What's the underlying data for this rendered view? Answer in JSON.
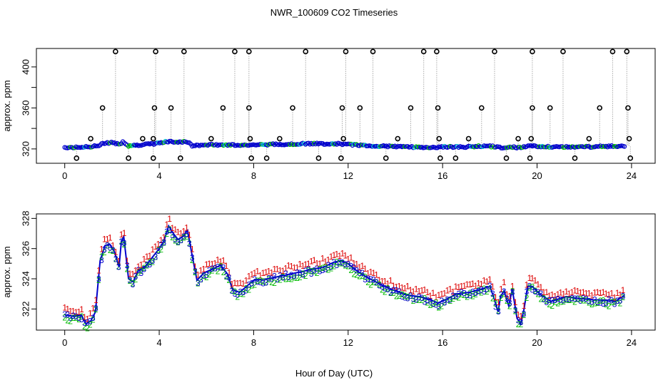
{
  "title": "NWR_100609  CO2 Timeseries",
  "xlabel": "Hour of Day (UTC)",
  "colors": {
    "open_circle": "#000000",
    "connector": "#aaaaaa",
    "series1": "#dd0000",
    "series2": "#00bb00",
    "series3": "#0000cc",
    "avg_line": "#0000cc",
    "cyan_points": "#00cccc"
  },
  "chart_data": [
    {
      "type": "scatter",
      "name": "top-panel",
      "ylabel": "approx. ppm",
      "xlim": [
        -1.2,
        25
      ],
      "ylim": [
        306,
        418
      ],
      "x_ticks": [
        0,
        4,
        8,
        12,
        16,
        20,
        24
      ],
      "x_tick_labels": [
        "0",
        "4",
        "8",
        "12",
        "16",
        "20",
        "24"
      ],
      "y_ticks": [
        320,
        360,
        400
      ],
      "y_minor_ticks": [
        340,
        380
      ],
      "y_tick_labels": [
        "320",
        "360",
        "400"
      ],
      "baseline": [
        [
          0,
          321.5
        ],
        [
          0.5,
          321.5
        ],
        [
          1.0,
          322
        ],
        [
          1.4,
          323
        ],
        [
          1.7,
          326
        ],
        [
          2.0,
          326
        ],
        [
          2.3,
          325
        ],
        [
          2.5,
          327
        ],
        [
          2.7,
          323
        ],
        [
          3.2,
          324
        ],
        [
          3.8,
          325
        ],
        [
          4.3,
          327
        ],
        [
          4.8,
          327
        ],
        [
          5.2,
          327
        ],
        [
          5.4,
          323
        ],
        [
          6.0,
          324
        ],
        [
          7.0,
          324
        ],
        [
          8,
          324
        ],
        [
          10,
          325
        ],
        [
          11.6,
          325
        ],
        [
          12.2,
          324
        ],
        [
          13,
          323
        ],
        [
          14.5,
          322
        ],
        [
          15.6,
          321.5
        ],
        [
          16,
          322
        ],
        [
          17,
          322
        ],
        [
          17.8,
          323
        ],
        [
          18.3,
          322
        ],
        [
          18.6,
          321
        ],
        [
          19.0,
          322
        ],
        [
          19.3,
          321
        ],
        [
          19.6,
          323
        ],
        [
          20.5,
          322
        ],
        [
          22,
          322
        ],
        [
          23.7,
          323
        ]
      ],
      "spikes": [
        [
          0.5,
          311
        ],
        [
          1.1,
          330
        ],
        [
          1.6,
          360
        ],
        [
          2.15,
          415
        ],
        [
          2.7,
          311
        ],
        [
          3.3,
          330
        ],
        [
          3.75,
          330
        ],
        [
          3.85,
          415
        ],
        [
          3.8,
          360
        ],
        [
          3.75,
          311
        ],
        [
          4.5,
          360
        ],
        [
          5.05,
          415
        ],
        [
          4.9,
          311
        ],
        [
          6.2,
          330
        ],
        [
          6.7,
          360
        ],
        [
          7.2,
          415
        ],
        [
          7.8,
          415
        ],
        [
          7.8,
          360
        ],
        [
          7.85,
          330
        ],
        [
          7.9,
          311
        ],
        [
          8.55,
          311
        ],
        [
          9.1,
          330
        ],
        [
          9.65,
          360
        ],
        [
          10.2,
          415
        ],
        [
          10.75,
          311
        ],
        [
          11.7,
          311
        ],
        [
          11.75,
          360
        ],
        [
          11.9,
          415
        ],
        [
          11.8,
          330
        ],
        [
          12.5,
          360
        ],
        [
          13.05,
          415
        ],
        [
          13.6,
          311
        ],
        [
          14.1,
          330
        ],
        [
          14.65,
          360
        ],
        [
          15.2,
          415
        ],
        [
          15.75,
          415
        ],
        [
          15.8,
          360
        ],
        [
          15.85,
          330
        ],
        [
          15.9,
          311
        ],
        [
          16.55,
          311
        ],
        [
          17.1,
          330
        ],
        [
          17.65,
          360
        ],
        [
          18.2,
          415
        ],
        [
          18.7,
          311
        ],
        [
          19.2,
          330
        ],
        [
          19.8,
          415
        ],
        [
          19.8,
          360
        ],
        [
          19.75,
          330
        ],
        [
          19.7,
          311
        ],
        [
          20.55,
          360
        ],
        [
          21.1,
          415
        ],
        [
          21.6,
          311
        ],
        [
          22.2,
          330
        ],
        [
          22.65,
          360
        ],
        [
          23.2,
          415
        ],
        [
          23.8,
          415
        ],
        [
          23.85,
          360
        ],
        [
          23.9,
          330
        ],
        [
          23.95,
          311
        ]
      ]
    },
    {
      "type": "line",
      "name": "bottom-panel",
      "ylabel": "approx. ppm",
      "xlim": [
        -1.2,
        25
      ],
      "ylim": [
        320.6,
        328.3
      ],
      "x_ticks": [
        0,
        4,
        8,
        12,
        16,
        20,
        24
      ],
      "x_tick_labels": [
        "0",
        "4",
        "8",
        "12",
        "16",
        "20",
        "24"
      ],
      "y_ticks": [
        322,
        324,
        326,
        328
      ],
      "y_tick_labels": [
        "322",
        "324",
        "326",
        "328"
      ],
      "series_names": [
        "1",
        "2",
        "3"
      ],
      "path": [
        [
          0,
          321.6
        ],
        [
          0.4,
          321.5
        ],
        [
          0.7,
          321.6
        ],
        [
          0.9,
          321.0
        ],
        [
          1.1,
          321.2
        ],
        [
          1.3,
          321.8
        ],
        [
          1.5,
          325.2
        ],
        [
          1.7,
          326.2
        ],
        [
          1.9,
          326.3
        ],
        [
          2.1,
          325.8
        ],
        [
          2.3,
          324.8
        ],
        [
          2.4,
          326.5
        ],
        [
          2.5,
          326.8
        ],
        [
          2.7,
          324.0
        ],
        [
          2.9,
          323.8
        ],
        [
          3.1,
          324.5
        ],
        [
          3.4,
          324.8
        ],
        [
          3.7,
          325.4
        ],
        [
          4.0,
          326.0
        ],
        [
          4.2,
          326.5
        ],
        [
          4.4,
          327.5
        ],
        [
          4.6,
          327.0
        ],
        [
          4.8,
          326.6
        ],
        [
          5.0,
          326.8
        ],
        [
          5.2,
          327.2
        ],
        [
          5.4,
          325.5
        ],
        [
          5.6,
          323.9
        ],
        [
          5.9,
          324.4
        ],
        [
          6.2,
          324.6
        ],
        [
          6.6,
          324.9
        ],
        [
          6.9,
          324.3
        ],
        [
          7.1,
          323.3
        ],
        [
          7.4,
          323.1
        ],
        [
          7.7,
          323.5
        ],
        [
          8.0,
          323.9
        ],
        [
          8.6,
          324.0
        ],
        [
          9.2,
          324.2
        ],
        [
          9.8,
          324.4
        ],
        [
          10.4,
          324.6
        ],
        [
          11.0,
          324.8
        ],
        [
          11.4,
          325.1
        ],
        [
          11.7,
          325.2
        ],
        [
          12.0,
          325.0
        ],
        [
          12.3,
          324.6
        ],
        [
          12.8,
          324.1
        ],
        [
          13.4,
          323.6
        ],
        [
          14.0,
          323.2
        ],
        [
          14.6,
          322.9
        ],
        [
          15.1,
          322.8
        ],
        [
          15.5,
          322.6
        ],
        [
          15.8,
          322.4
        ],
        [
          16.1,
          322.6
        ],
        [
          16.6,
          323.0
        ],
        [
          17.1,
          323.1
        ],
        [
          17.6,
          323.3
        ],
        [
          18.0,
          323.5
        ],
        [
          18.2,
          322.6
        ],
        [
          18.35,
          321.8
        ],
        [
          18.45,
          322.8
        ],
        [
          18.6,
          323.2
        ],
        [
          18.8,
          322.2
        ],
        [
          18.95,
          323.3
        ],
        [
          19.15,
          321.4
        ],
        [
          19.3,
          321.0
        ],
        [
          19.45,
          322.0
        ],
        [
          19.6,
          323.5
        ],
        [
          19.8,
          323.5
        ],
        [
          20.1,
          323.0
        ],
        [
          20.6,
          322.5
        ],
        [
          21.2,
          322.8
        ],
        [
          21.8,
          322.7
        ],
        [
          22.4,
          322.6
        ],
        [
          22.9,
          322.6
        ],
        [
          23.3,
          322.5
        ],
        [
          23.7,
          322.9
        ]
      ],
      "offsets": {
        "1": 0.45,
        "2": -0.15,
        "3": -0.05
      }
    }
  ]
}
